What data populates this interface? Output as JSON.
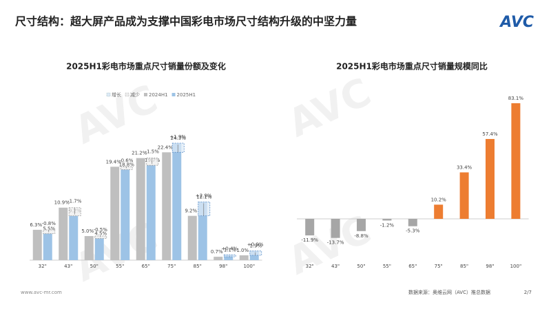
{
  "header": {
    "title": "尺寸结构：超大屏产品成为支撑中国彩电市场尺寸结构升级的中坚力量",
    "logo": "AVC"
  },
  "watermark": "AVC",
  "footer": {
    "url": "www.avc-mr.com",
    "source": "数据来源：奥维云网（AVC）推总数据",
    "page": "2/7"
  },
  "chart_data": [
    {
      "type": "grouped-change-bar",
      "title": "2025H1彩电市场重点尺寸销量份额及变化",
      "categories": [
        "32\"",
        "43\"",
        "50\"",
        "55\"",
        "65\"",
        "75\"",
        "85\"",
        "98\"",
        "100\""
      ],
      "series": [
        {
          "name": "2024H1",
          "color": "#bfbfbf",
          "values": [
            6.3,
            10.9,
            5.0,
            19.4,
            21.2,
            22.4,
            9.2,
            0.7,
            1.0
          ],
          "value_labels": [
            "6.3%",
            "10.9%",
            "5.0%",
            "19.4%",
            "21.2%",
            "22.4%",
            "9.2%",
            "0.7%",
            "1.0%"
          ]
        },
        {
          "name": "2025H1",
          "color": "#9dc3e6",
          "values": [
            5.5,
            9.2,
            4.5,
            18.8,
            19.7,
            24.3,
            12.1,
            1.1,
            1.9
          ],
          "value_labels": [
            "5.5%",
            "9.2%",
            "4.5%",
            "18.8%",
            "19.7%",
            "24.3%",
            "12.1%",
            "1.1%",
            "1.9%"
          ]
        }
      ],
      "change": {
        "increase_name": "增长",
        "decrease_name": "减少",
        "increase_color": "#deebf7",
        "decrease_color": "#ededed",
        "values": [
          -0.8,
          -1.7,
          -0.5,
          -0.6,
          -1.5,
          1.9,
          2.9,
          0.4,
          0.9
        ],
        "value_labels": [
          "-0.8%",
          "-1.7%",
          "-0.5%",
          "-0.6%",
          "-1.5%",
          "+1.9%",
          "+2.9%",
          "+0.4%",
          "+0.9%"
        ]
      }
    },
    {
      "type": "bar",
      "title": "2025H1彩电市场重点尺寸销量规模同比",
      "categories": [
        "32\"",
        "43\"",
        "50\"",
        "55\"",
        "65\"",
        "75\"",
        "85\"",
        "98\"",
        "100\""
      ],
      "color": "#ed7d31",
      "negative_color": "#a6a6a6",
      "values": [
        -11.9,
        -13.7,
        -8.8,
        -1.2,
        -5.3,
        10.2,
        33.4,
        57.4,
        83.1
      ],
      "value_labels": [
        "-11.9%",
        "-13.7%",
        "-8.8%",
        "-1.2%",
        "-5.3%",
        "10.2%",
        "33.4%",
        "57.4%",
        "83.1%"
      ]
    }
  ]
}
